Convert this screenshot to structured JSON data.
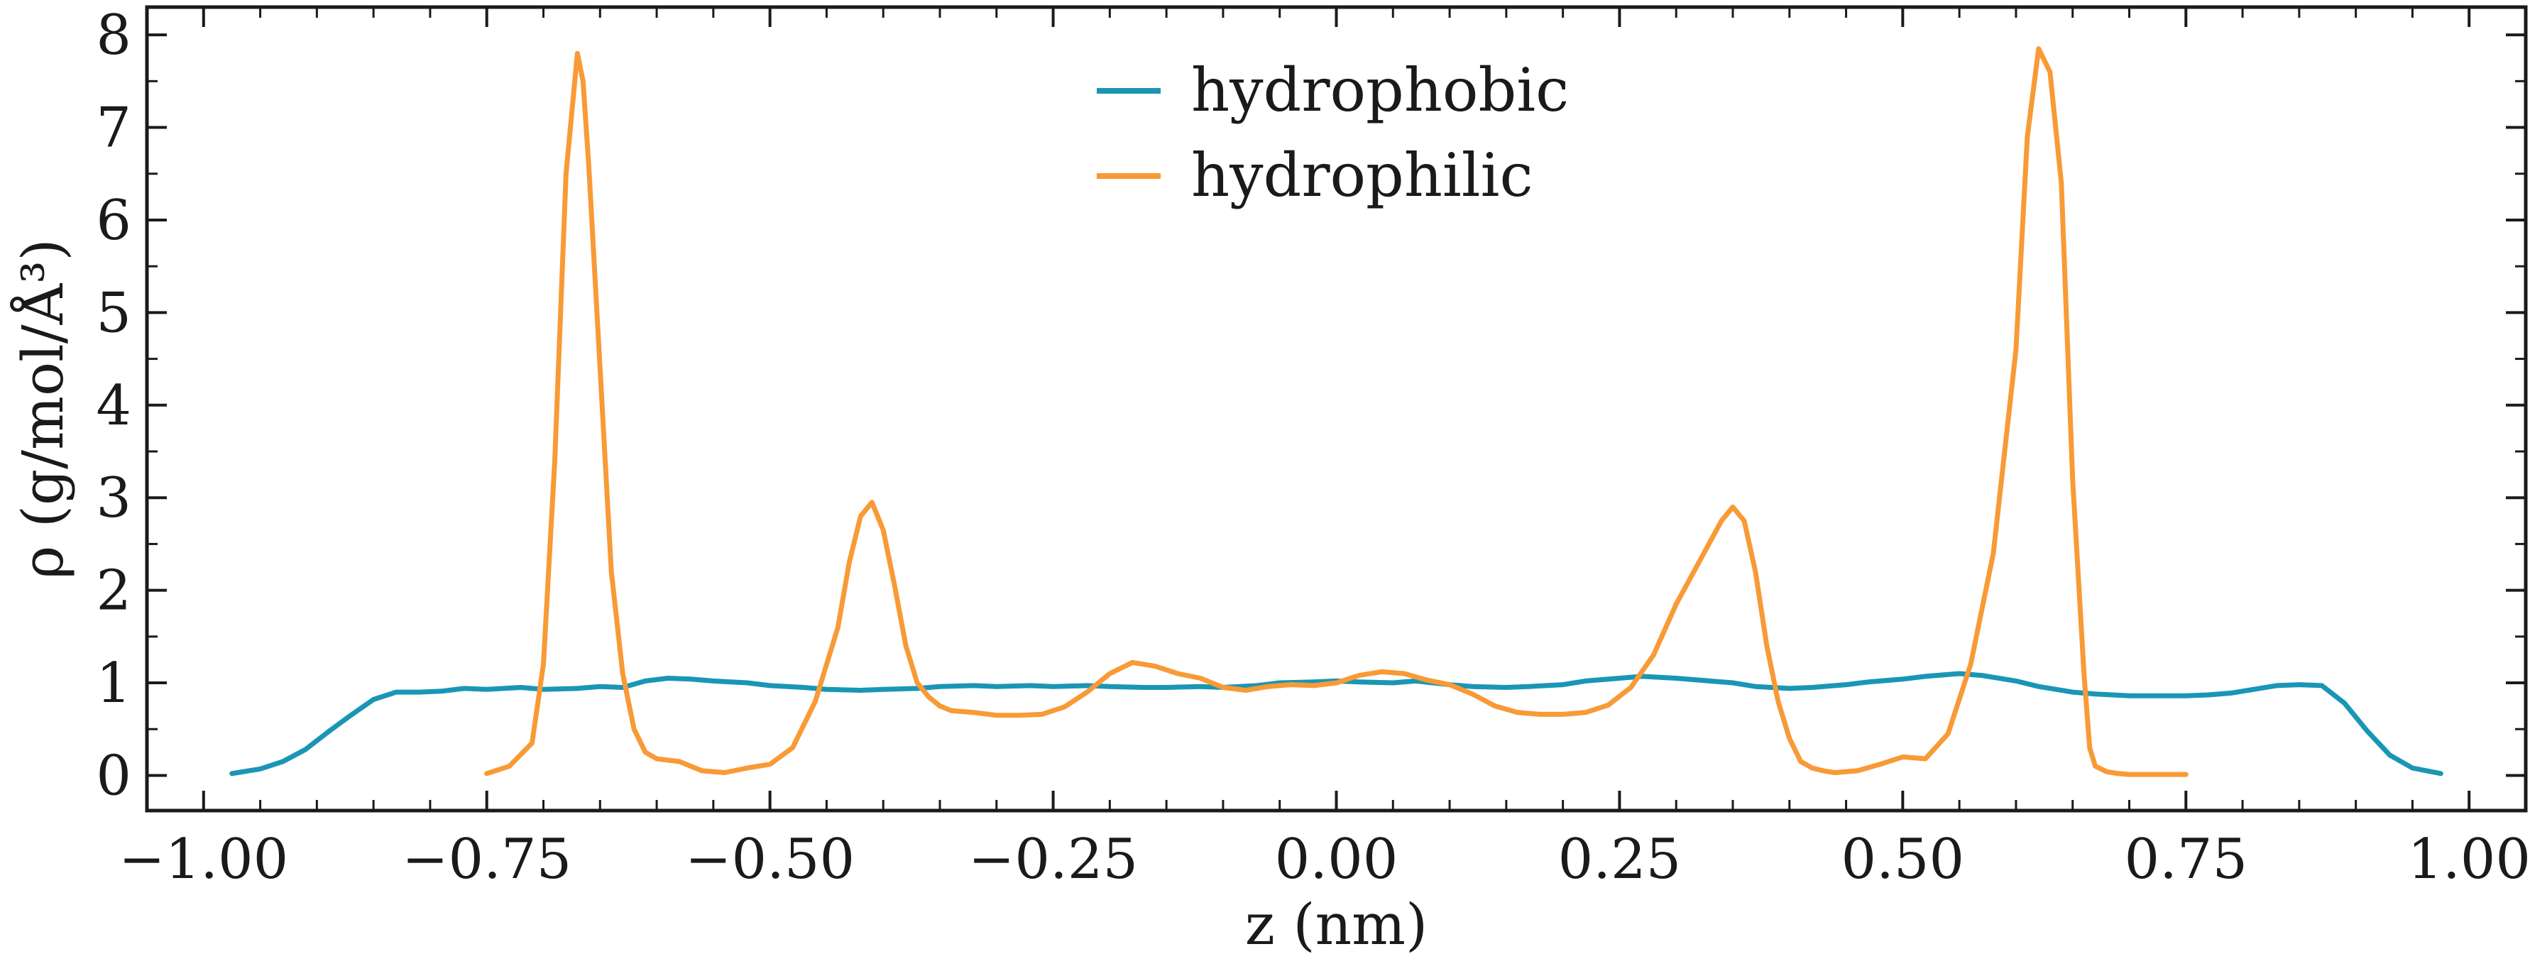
{
  "chart_data": {
    "type": "line",
    "xlabel": "z (nm)",
    "ylabel": "ρ (g/mol/Å³)",
    "xlim": [
      -1.05,
      1.05
    ],
    "ylim": [
      -0.38,
      8.3
    ],
    "xticks": [
      -1.0,
      -0.75,
      -0.5,
      -0.25,
      0.0,
      0.25,
      0.5,
      0.75,
      1.0
    ],
    "xtick_labels": [
      "−1.00",
      "−0.75",
      "−0.50",
      "−0.25",
      "0.00",
      "0.25",
      "0.50",
      "0.75",
      "1.00"
    ],
    "yticks": [
      0,
      1,
      2,
      3,
      4,
      5,
      6,
      7,
      8
    ],
    "ytick_labels": [
      "0",
      "1",
      "2",
      "3",
      "4",
      "5",
      "6",
      "7",
      "8"
    ],
    "grid": false,
    "legend_position": "top-center",
    "series": [
      {
        "name": "hydrophobic",
        "color": "#1a96b5",
        "x": [
          -0.975,
          -0.95,
          -0.93,
          -0.91,
          -0.89,
          -0.87,
          -0.85,
          -0.83,
          -0.81,
          -0.79,
          -0.77,
          -0.75,
          -0.72,
          -0.7,
          -0.67,
          -0.65,
          -0.63,
          -0.61,
          -0.59,
          -0.57,
          -0.55,
          -0.52,
          -0.5,
          -0.47,
          -0.45,
          -0.42,
          -0.4,
          -0.37,
          -0.35,
          -0.32,
          -0.3,
          -0.27,
          -0.25,
          -0.22,
          -0.2,
          -0.17,
          -0.15,
          -0.12,
          -0.1,
          -0.07,
          -0.05,
          -0.02,
          0.0,
          0.02,
          0.05,
          0.07,
          0.1,
          0.12,
          0.15,
          0.17,
          0.2,
          0.22,
          0.25,
          0.27,
          0.3,
          0.32,
          0.35,
          0.37,
          0.4,
          0.42,
          0.45,
          0.47,
          0.5,
          0.52,
          0.55,
          0.57,
          0.6,
          0.62,
          0.65,
          0.67,
          0.7,
          0.72,
          0.75,
          0.77,
          0.79,
          0.81,
          0.83,
          0.85,
          0.87,
          0.89,
          0.91,
          0.93,
          0.95,
          0.975
        ],
        "y": [
          0.02,
          0.07,
          0.15,
          0.28,
          0.47,
          0.65,
          0.82,
          0.9,
          0.9,
          0.91,
          0.94,
          0.93,
          0.95,
          0.93,
          0.94,
          0.96,
          0.95,
          1.02,
          1.05,
          1.04,
          1.02,
          1.0,
          0.97,
          0.95,
          0.93,
          0.92,
          0.93,
          0.94,
          0.96,
          0.97,
          0.96,
          0.97,
          0.96,
          0.97,
          0.96,
          0.95,
          0.95,
          0.96,
          0.95,
          0.97,
          1.0,
          1.01,
          1.02,
          1.01,
          1.0,
          1.02,
          0.98,
          0.96,
          0.95,
          0.96,
          0.98,
          1.02,
          1.05,
          1.07,
          1.05,
          1.03,
          1.0,
          0.96,
          0.94,
          0.95,
          0.98,
          1.01,
          1.04,
          1.07,
          1.1,
          1.08,
          1.02,
          0.96,
          0.9,
          0.88,
          0.86,
          0.86,
          0.86,
          0.87,
          0.89,
          0.93,
          0.97,
          0.98,
          0.97,
          0.78,
          0.48,
          0.22,
          0.08,
          0.02
        ]
      },
      {
        "name": "hydrophilic",
        "color": "#f89a36",
        "x": [
          -0.75,
          -0.73,
          -0.71,
          -0.7,
          -0.69,
          -0.68,
          -0.67,
          -0.665,
          -0.66,
          -0.65,
          -0.64,
          -0.63,
          -0.62,
          -0.61,
          -0.6,
          -0.58,
          -0.56,
          -0.54,
          -0.52,
          -0.5,
          -0.48,
          -0.46,
          -0.44,
          -0.43,
          -0.42,
          -0.41,
          -0.4,
          -0.39,
          -0.38,
          -0.37,
          -0.36,
          -0.35,
          -0.34,
          -0.32,
          -0.3,
          -0.28,
          -0.26,
          -0.24,
          -0.22,
          -0.2,
          -0.18,
          -0.16,
          -0.14,
          -0.12,
          -0.1,
          -0.08,
          -0.06,
          -0.04,
          -0.02,
          0.0,
          0.02,
          0.04,
          0.06,
          0.08,
          0.1,
          0.12,
          0.14,
          0.16,
          0.18,
          0.2,
          0.22,
          0.24,
          0.26,
          0.28,
          0.3,
          0.32,
          0.34,
          0.35,
          0.36,
          0.37,
          0.38,
          0.39,
          0.4,
          0.41,
          0.42,
          0.43,
          0.44,
          0.46,
          0.48,
          0.5,
          0.52,
          0.54,
          0.56,
          0.58,
          0.6,
          0.61,
          0.62,
          0.63,
          0.64,
          0.65,
          0.66,
          0.665,
          0.67,
          0.68,
          0.69,
          0.7,
          0.71,
          0.73,
          0.75
        ],
        "y": [
          0.02,
          0.1,
          0.35,
          1.2,
          3.4,
          6.5,
          7.8,
          7.5,
          6.6,
          4.4,
          2.2,
          1.1,
          0.5,
          0.25,
          0.18,
          0.15,
          0.05,
          0.03,
          0.08,
          0.12,
          0.3,
          0.8,
          1.6,
          2.3,
          2.8,
          2.95,
          2.65,
          2.05,
          1.4,
          1.0,
          0.85,
          0.75,
          0.7,
          0.68,
          0.65,
          0.65,
          0.66,
          0.74,
          0.9,
          1.1,
          1.22,
          1.18,
          1.1,
          1.05,
          0.95,
          0.92,
          0.96,
          0.98,
          0.97,
          1.0,
          1.08,
          1.12,
          1.1,
          1.03,
          0.98,
          0.88,
          0.75,
          0.68,
          0.66,
          0.66,
          0.68,
          0.76,
          0.95,
          1.3,
          1.85,
          2.3,
          2.75,
          2.9,
          2.75,
          2.2,
          1.4,
          0.8,
          0.4,
          0.15,
          0.08,
          0.05,
          0.03,
          0.05,
          0.12,
          0.2,
          0.18,
          0.45,
          1.2,
          2.4,
          4.6,
          6.9,
          7.85,
          7.6,
          6.4,
          3.2,
          1.1,
          0.3,
          0.1,
          0.04,
          0.02,
          0.01,
          0.01,
          0.01,
          0.01
        ]
      }
    ]
  }
}
